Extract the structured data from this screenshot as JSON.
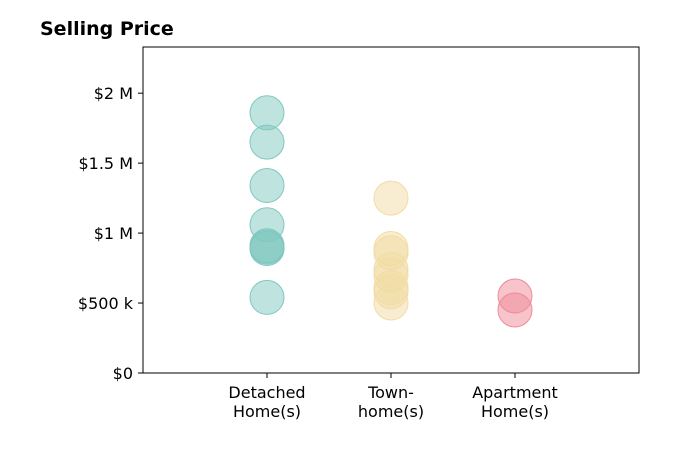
{
  "chart_data": {
    "type": "scatter",
    "title": "Selling Price",
    "xlabel": "",
    "ylabel": "",
    "categories": [
      [
        "Detached",
        "Home(s)"
      ],
      [
        "Town-",
        "home(s)"
      ],
      [
        "Apartment",
        "Home(s)"
      ]
    ],
    "xlim": [
      -1,
      3
    ],
    "ylim": [
      0,
      2330000
    ],
    "y_ticks": [
      {
        "value": 0,
        "label": "$0"
      },
      {
        "value": 500000,
        "label": "$500 k"
      },
      {
        "value": 1000000,
        "label": "$1 M"
      },
      {
        "value": 1500000,
        "label": "$1.5 M"
      },
      {
        "value": 2000000,
        "label": "$2 M"
      }
    ],
    "grid": false,
    "series": [
      {
        "color": "#7fc8c0",
        "x": 0,
        "values": [
          1860000,
          1650000,
          1340000,
          1060000,
          910000,
          900000,
          890000,
          540000
        ]
      },
      {
        "color": "#f2dca4",
        "x": 1,
        "values": [
          1250000,
          890000,
          860000,
          740000,
          700000,
          610000,
          580000,
          500000
        ]
      },
      {
        "color": "#f08a98",
        "x": 2,
        "values": [
          550000,
          450000
        ]
      }
    ]
  }
}
